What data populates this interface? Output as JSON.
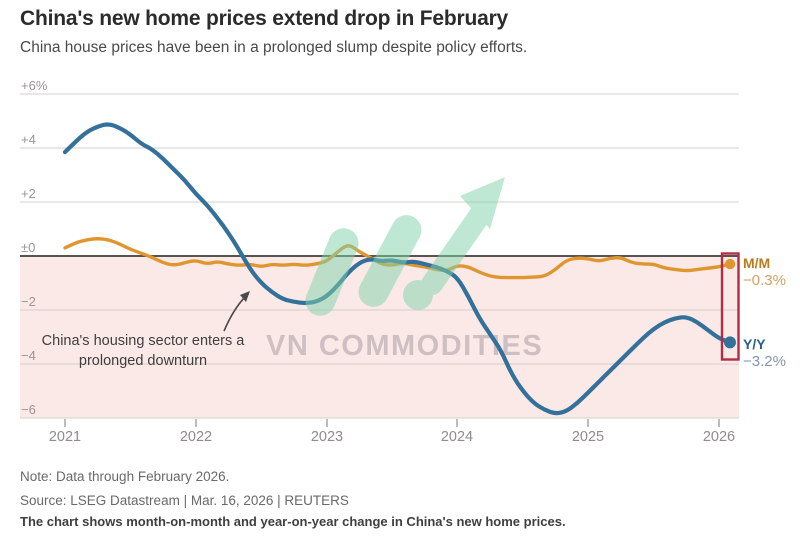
{
  "header": {
    "title": "China's new home prices extend drop in February",
    "subtitle": "China house prices have been in a prolonged slump despite policy efforts."
  },
  "watermark": {
    "text": "VN COMMODITIES",
    "logo_icon": "green-up-trend-arrow-logo"
  },
  "annotation": {
    "line1": "China's housing sector enters a",
    "line2": "prolonged downturn"
  },
  "end_labels": {
    "mm_name": "M/M",
    "mm_value": "−0.3%",
    "yy_name": "Y/Y",
    "yy_value": "−3.2%"
  },
  "footer": {
    "note": "Note: Data through February 2026.",
    "source": "Source: LSEG Datastream | Mar. 16, 2026 | REUTERS",
    "description": "The chart shows month-on-month and year-on-year change in China's new home prices."
  },
  "colors": {
    "mm_line": "#e0962e",
    "yy_line": "#33719b",
    "negative_area_bg": "#fbe9e7",
    "zero_line": "#55544e",
    "gridline": "#d6cfcc",
    "highlight_box": "#b22c45",
    "watermark_green": "#7fd3a8"
  },
  "chart_data": {
    "type": "line",
    "title": "China's new home prices extend drop in February",
    "x_unit": "monthly, Jan 2021 – Feb 2026",
    "x_tick_labels": [
      "2021",
      "2022",
      "2023",
      "2024",
      "2025",
      "2026"
    ],
    "y_tick_labels": [
      "+6%",
      "+4",
      "+2",
      "±0",
      "−2",
      "−4",
      "−6"
    ],
    "y_tick_values": [
      6,
      4,
      2,
      0,
      -2,
      -4,
      -6
    ],
    "ylim": [
      -6.5,
      6
    ],
    "grid": "horizontal-only",
    "negative_region_shaded": true,
    "series": [
      {
        "name": "M/M",
        "label": "M/M −0.3%",
        "color": "#e0962e",
        "last_value": -0.3,
        "values": [
          0.3,
          0.5,
          0.6,
          0.65,
          0.6,
          0.45,
          0.25,
          0.1,
          -0.05,
          -0.25,
          -0.35,
          -0.25,
          -0.15,
          -0.3,
          -0.2,
          -0.3,
          -0.35,
          -0.3,
          -0.4,
          -0.3,
          -0.35,
          -0.3,
          -0.35,
          -0.3,
          -0.2,
          0.15,
          0.45,
          0.15,
          -0.05,
          -0.3,
          -0.35,
          -0.25,
          -0.35,
          -0.4,
          -0.5,
          -0.55,
          -0.35,
          -0.4,
          -0.6,
          -0.75,
          -0.8,
          -0.8,
          -0.8,
          -0.78,
          -0.75,
          -0.5,
          -0.15,
          -0.07,
          -0.1,
          -0.2,
          -0.08,
          -0.05,
          -0.25,
          -0.3,
          -0.3,
          -0.45,
          -0.5,
          -0.55,
          -0.5,
          -0.45,
          -0.4,
          -0.3
        ]
      },
      {
        "name": "Y/Y",
        "label": "Y/Y −3.2%",
        "color": "#33719b",
        "last_value": -3.2,
        "values": [
          3.85,
          4.25,
          4.6,
          4.8,
          4.9,
          4.75,
          4.5,
          4.15,
          3.95,
          3.6,
          3.2,
          2.8,
          2.3,
          1.9,
          1.4,
          0.85,
          0.2,
          -0.5,
          -1.0,
          -1.35,
          -1.6,
          -1.7,
          -1.75,
          -1.7,
          -1.5,
          -1.1,
          -0.6,
          -0.25,
          -0.1,
          -0.2,
          -0.15,
          -0.25,
          -0.2,
          -0.3,
          -0.4,
          -0.55,
          -0.8,
          -1.5,
          -2.3,
          -2.9,
          -3.5,
          -4.4,
          -5.0,
          -5.45,
          -5.7,
          -5.85,
          -5.75,
          -5.45,
          -5.05,
          -4.65,
          -4.25,
          -3.85,
          -3.45,
          -3.05,
          -2.7,
          -2.45,
          -2.3,
          -2.25,
          -2.45,
          -2.75,
          -3.05,
          -3.2
        ]
      }
    ],
    "annotation": "China's housing sector enters a prolonged downturn",
    "legend_position": "right-end-of-lines"
  }
}
